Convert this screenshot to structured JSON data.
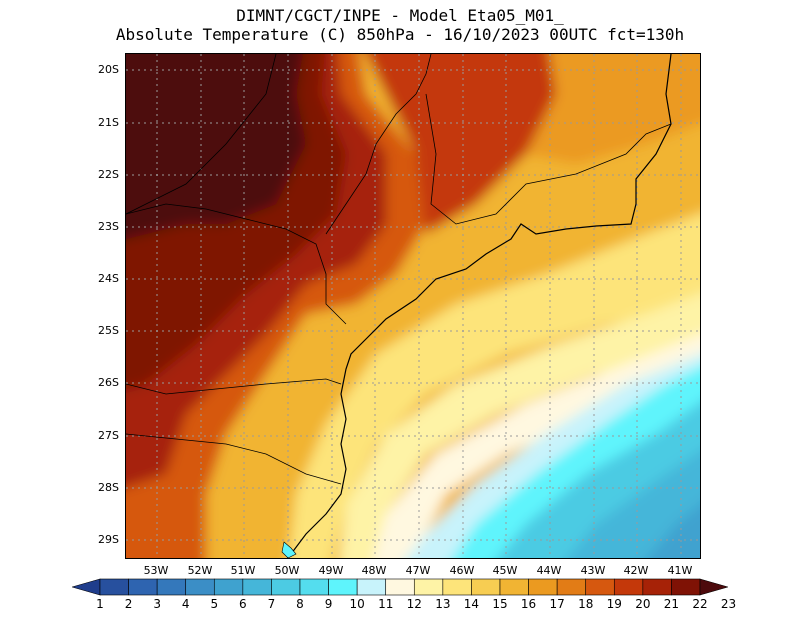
{
  "title_line1": "DIMNT/CGCT/INPE -  Model Eta05_M01_",
  "title_line2": "Absolute Temperature (C) 850hPa -  16/10/2023 00UTC fct=130h",
  "lat_labels": [
    "20S",
    "21S",
    "22S",
    "23S",
    "24S",
    "25S",
    "26S",
    "27S",
    "28S",
    "29S"
  ],
  "lon_labels": [
    "53W",
    "52W",
    "51W",
    "50W",
    "49W",
    "48W",
    "47W",
    "46W",
    "45W",
    "44W",
    "43W",
    "42W",
    "41W"
  ],
  "colorbar": {
    "labels": [
      "1",
      "2",
      "3",
      "4",
      "5",
      "6",
      "7",
      "8",
      "9",
      "10",
      "11",
      "12",
      "13",
      "14",
      "15",
      "16",
      "17",
      "18",
      "19",
      "20",
      "21",
      "22",
      "23"
    ],
    "colors": [
      "#1f3d8c",
      "#27509e",
      "#2e64b0",
      "#3478bb",
      "#3b8ec6",
      "#3fa2cf",
      "#45b6d9",
      "#4ccbe3",
      "#54ddee",
      "#5ef4fc",
      "#c8f3fb",
      "#fff8e0",
      "#fef3a6",
      "#fde47a",
      "#f7cd52",
      "#f1b433",
      "#eb9a20",
      "#e27c16",
      "#d6580f",
      "#c4380a",
      "#a62207",
      "#7f1205",
      "#4d0a0c"
    ]
  },
  "labels": {
    "frame": "Map plot area",
    "colorbar": "Temperature color scale"
  }
}
